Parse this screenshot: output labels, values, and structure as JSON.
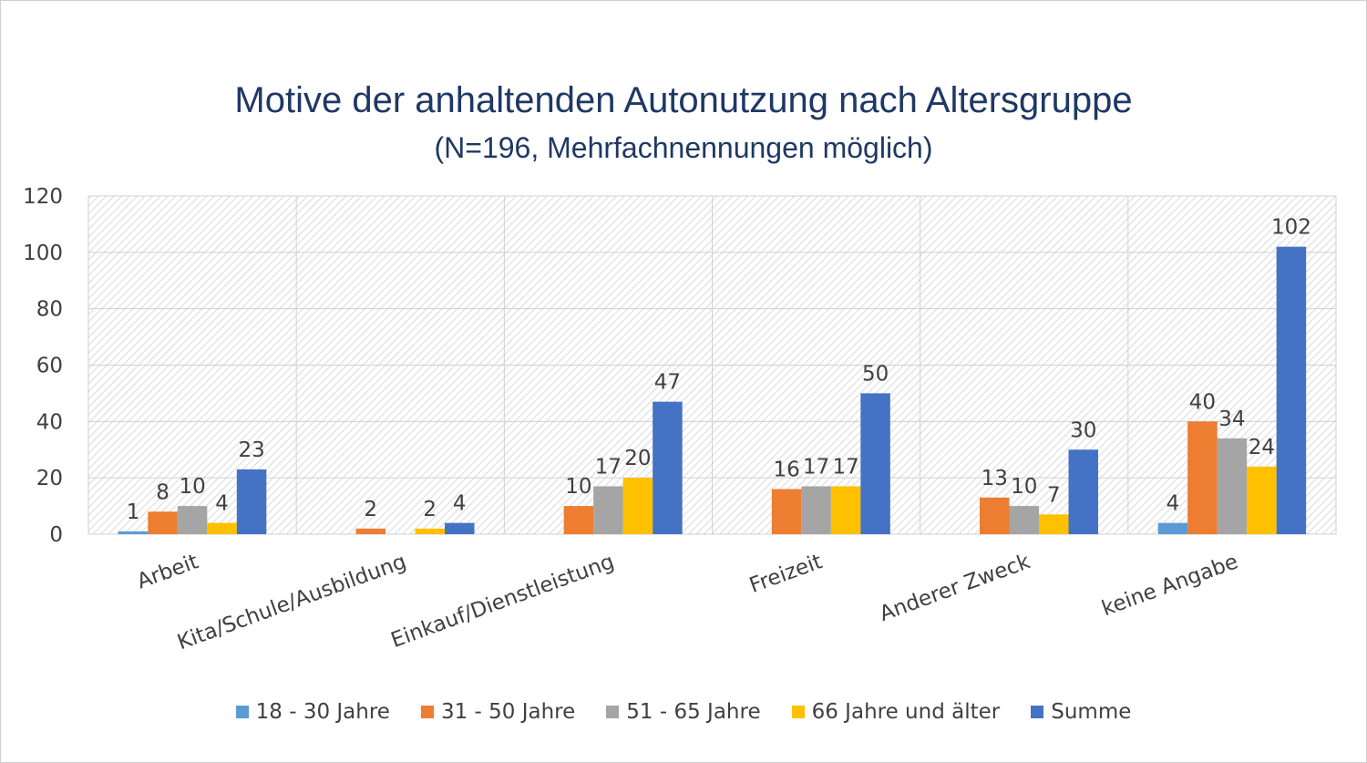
{
  "chart_data": {
    "type": "bar",
    "title": "Motive der anhaltenden Autonutzung nach Altersgruppe",
    "subtitle": "(N=196, Mehrfachnennungen möglich)",
    "categories": [
      "Arbeit",
      "Kita/Schule/Ausbildung",
      "Einkauf/Dienstleistung",
      "Freizeit",
      "Anderer Zweck",
      "keine Angabe"
    ],
    "series": [
      {
        "name": "18 - 30 Jahre",
        "color": "#5b9bd5",
        "values": [
          1,
          0,
          0,
          0,
          0,
          4
        ],
        "labels": [
          "1",
          "",
          "",
          "",
          "",
          "4"
        ]
      },
      {
        "name": "31 - 50 Jahre",
        "color": "#ed7d31",
        "values": [
          8,
          2,
          10,
          16,
          13,
          40
        ],
        "labels": [
          "8",
          "2",
          "10",
          "16",
          "13",
          "40"
        ]
      },
      {
        "name": "51 - 65 Jahre",
        "color": "#a5a5a5",
        "values": [
          10,
          0,
          17,
          17,
          10,
          34
        ],
        "labels": [
          "10",
          "",
          "17",
          "17",
          "10",
          "34"
        ]
      },
      {
        "name": "66 Jahre und älter",
        "color": "#ffc000",
        "values": [
          4,
          2,
          20,
          17,
          7,
          24
        ],
        "labels": [
          "4",
          "2",
          "20",
          "17",
          "7",
          "24"
        ]
      },
      {
        "name": "Summe",
        "color": "#4472c4",
        "values": [
          23,
          4,
          47,
          50,
          30,
          102
        ],
        "labels": [
          "23",
          "4",
          "47",
          "50",
          "30",
          "102"
        ]
      }
    ],
    "yticks": [
      "0",
      "20",
      "40",
      "60",
      "80",
      "100",
      "120"
    ],
    "ylim": [
      0,
      120
    ],
    "grid": true,
    "legend_position": "bottom"
  }
}
